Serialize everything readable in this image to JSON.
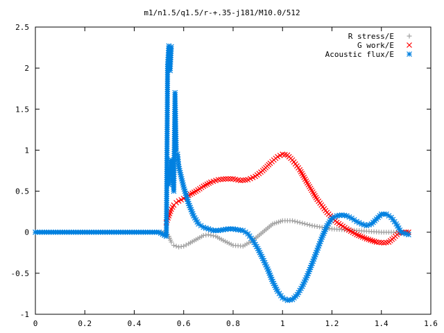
{
  "chart_data": {
    "type": "scatter",
    "title": "m1/n1.5/q1.5/r-+.35-j181/M10.0/512",
    "xlabel": "",
    "ylabel": "",
    "xlim": [
      0,
      1.6
    ],
    "ylim": [
      -1,
      2.5
    ],
    "x_ticks": [
      "0",
      "0.2",
      "0.4",
      "0.6",
      "0.8",
      "1",
      "1.2",
      "1.4",
      "1.6"
    ],
    "y_ticks": [
      "-1",
      "-0.5",
      "0",
      "0.5",
      "1",
      "1.5",
      "2",
      "2.5"
    ],
    "legend_position": "top-right",
    "grid": false,
    "series": [
      {
        "name": "R stress/E",
        "marker": "+",
        "color": "#a0a0a0",
        "x": [
          0.0,
          0.1,
          0.2,
          0.3,
          0.4,
          0.5,
          0.53,
          0.54,
          0.55,
          0.56,
          0.58,
          0.6,
          0.62,
          0.65,
          0.68,
          0.7,
          0.73,
          0.76,
          0.8,
          0.84,
          0.88,
          0.92,
          0.96,
          1.0,
          1.04,
          1.08,
          1.12,
          1.16,
          1.2,
          1.25,
          1.3,
          1.35,
          1.4,
          1.45,
          1.5,
          1.51
        ],
        "y": [
          0,
          0,
          0,
          0,
          0,
          0,
          0,
          -0.05,
          -0.12,
          -0.16,
          -0.18,
          -0.17,
          -0.14,
          -0.09,
          -0.04,
          -0.03,
          -0.05,
          -0.1,
          -0.16,
          -0.17,
          -0.1,
          0.0,
          0.1,
          0.14,
          0.14,
          0.11,
          0.08,
          0.06,
          0.04,
          0.03,
          0.02,
          0.01,
          0.0,
          0.0,
          0.0,
          0.0
        ]
      },
      {
        "name": "G work/E",
        "marker": "x",
        "color": "#ff0000",
        "x": [
          0.53,
          0.54,
          0.55,
          0.56,
          0.57,
          0.58,
          0.6,
          0.62,
          0.65,
          0.68,
          0.71,
          0.74,
          0.77,
          0.8,
          0.83,
          0.86,
          0.89,
          0.92,
          0.95,
          0.98,
          1.0,
          1.02,
          1.04,
          1.07,
          1.1,
          1.14,
          1.18,
          1.22,
          1.26,
          1.3,
          1.34,
          1.38,
          1.41,
          1.43,
          1.45,
          1.47,
          1.5,
          1.51
        ],
        "y": [
          0.12,
          0.2,
          0.28,
          0.33,
          0.36,
          0.38,
          0.41,
          0.45,
          0.5,
          0.56,
          0.61,
          0.64,
          0.65,
          0.65,
          0.63,
          0.64,
          0.68,
          0.75,
          0.84,
          0.92,
          0.95,
          0.94,
          0.88,
          0.76,
          0.6,
          0.4,
          0.24,
          0.12,
          0.04,
          -0.03,
          -0.08,
          -0.12,
          -0.13,
          -0.12,
          -0.07,
          -0.01,
          0.0,
          0.0
        ]
      },
      {
        "name": "Acoustic flux/E",
        "marker": "*",
        "color": "#0080e0",
        "x": [
          0.0,
          0.1,
          0.2,
          0.3,
          0.4,
          0.5,
          0.53,
          0.535,
          0.54,
          0.545,
          0.55,
          0.54,
          0.55,
          0.56,
          0.565,
          0.57,
          0.575,
          0.58,
          0.6,
          0.62,
          0.64,
          0.66,
          0.68,
          0.7,
          0.72,
          0.74,
          0.76,
          0.78,
          0.8,
          0.82,
          0.84,
          0.86,
          0.88,
          0.9,
          0.92,
          0.94,
          0.96,
          0.98,
          1.0,
          1.02,
          1.04,
          1.06,
          1.08,
          1.1,
          1.12,
          1.14,
          1.16,
          1.18,
          1.2,
          1.22,
          1.24,
          1.26,
          1.28,
          1.3,
          1.32,
          1.34,
          1.36,
          1.38,
          1.4,
          1.42,
          1.44,
          1.46,
          1.48,
          1.5,
          1.51
        ],
        "y": [
          0,
          0,
          0,
          0,
          0,
          0,
          -0.05,
          2.02,
          2.27,
          1.97,
          2.26,
          0.58,
          0.88,
          0.5,
          1.7,
          0.99,
          0.95,
          0.8,
          0.55,
          0.35,
          0.2,
          0.1,
          0.06,
          0.04,
          0.02,
          0.02,
          0.03,
          0.04,
          0.04,
          0.03,
          0.02,
          -0.02,
          -0.1,
          -0.2,
          -0.32,
          -0.45,
          -0.6,
          -0.72,
          -0.8,
          -0.83,
          -0.82,
          -0.76,
          -0.66,
          -0.53,
          -0.38,
          -0.22,
          -0.06,
          0.08,
          0.17,
          0.2,
          0.21,
          0.2,
          0.17,
          0.13,
          0.1,
          0.08,
          0.1,
          0.16,
          0.22,
          0.22,
          0.18,
          0.1,
          0.0,
          -0.02,
          -0.03
        ]
      }
    ]
  }
}
